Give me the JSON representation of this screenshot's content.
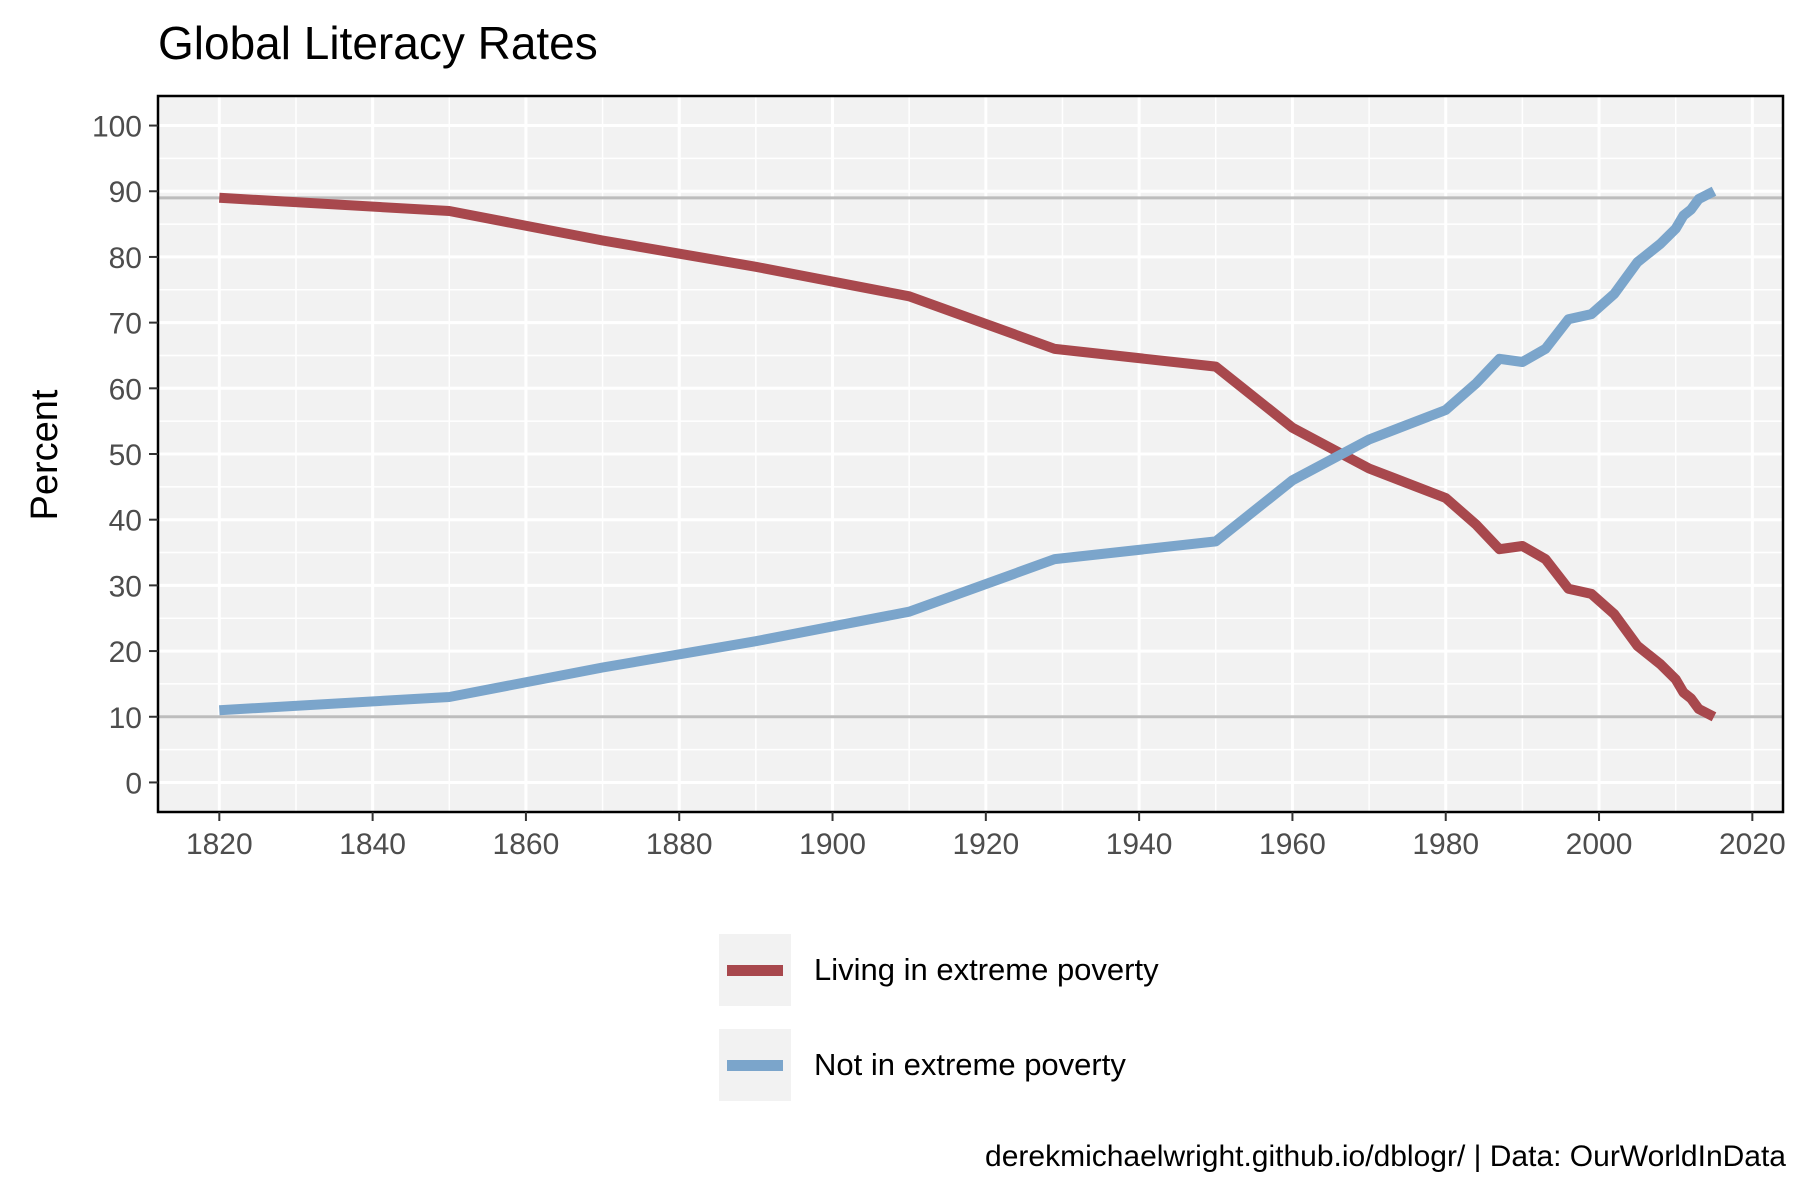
{
  "chart_data": {
    "type": "line",
    "title": "Global Literacy Rates",
    "xlabel": "",
    "ylabel": "Percent",
    "xlim": [
      1812,
      2024
    ],
    "ylim": [
      -4.5,
      104.5
    ],
    "x_ticks": [
      1820,
      1840,
      1860,
      1880,
      1900,
      1920,
      1940,
      1960,
      1980,
      2000,
      2020
    ],
    "y_ticks": [
      0,
      10,
      20,
      30,
      40,
      50,
      60,
      70,
      80,
      90,
      100
    ],
    "grid": true,
    "reference_lines_y": [
      10,
      89
    ],
    "legend_position": "bottom",
    "series": [
      {
        "name": "Living in extreme poverty",
        "color": "#a8484d",
        "x": [
          1820,
          1850,
          1870,
          1890,
          1910,
          1929,
          1950,
          1960,
          1970,
          1980,
          1984,
          1987,
          1990,
          1993,
          1996,
          1999,
          2002,
          2005,
          2008,
          2010,
          2011,
          2012,
          2013,
          2015
        ],
        "y": [
          89,
          87,
          82.5,
          78.5,
          74,
          66,
          63.3,
          54,
          47.8,
          43.3,
          39.2,
          35.5,
          36,
          34,
          29.5,
          28.7,
          25.6,
          20.8,
          18,
          15.7,
          13.7,
          12.8,
          11.2,
          10
        ]
      },
      {
        "name": "Not in extreme poverty",
        "color": "#7ba5cb",
        "x": [
          1820,
          1850,
          1870,
          1890,
          1910,
          1929,
          1950,
          1960,
          1970,
          1980,
          1984,
          1987,
          1990,
          1993,
          1996,
          1999,
          2002,
          2005,
          2008,
          2010,
          2011,
          2012,
          2013,
          2015
        ],
        "y": [
          11,
          13,
          17.5,
          21.5,
          26,
          34,
          36.7,
          46,
          52.2,
          56.7,
          60.8,
          64.5,
          64,
          66,
          70.5,
          71.3,
          74.4,
          79.2,
          82,
          84.3,
          86.3,
          87.2,
          88.8,
          90
        ]
      }
    ],
    "caption": "derekmichaelwright.github.io/dblogr/ | Data: OurWorldInData"
  }
}
